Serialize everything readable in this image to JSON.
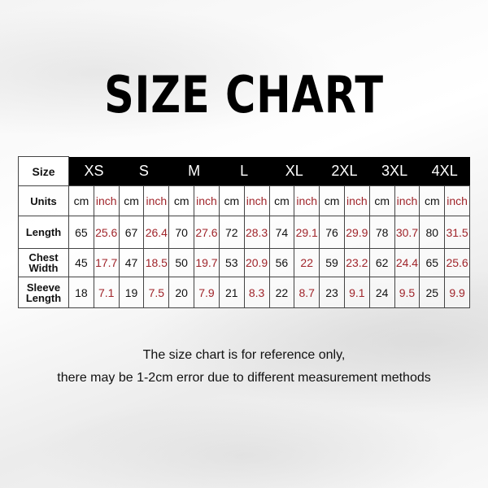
{
  "title": "SIZE CHART",
  "table": {
    "size_label": "Size",
    "sizes": [
      "XS",
      "S",
      "M",
      "L",
      "XL",
      "2XL",
      "3XL",
      "4XL"
    ],
    "units_label": "Units",
    "unit_cm": "cm",
    "unit_inch": "inch",
    "rows": [
      {
        "label": "Length",
        "cm": [
          "65",
          "67",
          "70",
          "72",
          "74",
          "76",
          "78",
          "80"
        ],
        "inch": [
          "25.6",
          "26.4",
          "27.6",
          "28.3",
          "29.1",
          "29.9",
          "30.7",
          "31.5"
        ]
      },
      {
        "label": "Chest Width",
        "cm": [
          "45",
          "47",
          "50",
          "53",
          "56",
          "59",
          "62",
          "65"
        ],
        "inch": [
          "17.7",
          "18.5",
          "19.7",
          "20.9",
          "22",
          "23.2",
          "24.4",
          "25.6"
        ]
      },
      {
        "label": "Sleeve Length",
        "cm": [
          "18",
          "19",
          "20",
          "21",
          "22",
          "23",
          "24",
          "25"
        ],
        "inch": [
          "7.1",
          "7.5",
          "7.9",
          "8.3",
          "8.7",
          "9.1",
          "9.5",
          "9.9"
        ]
      }
    ]
  },
  "note_line1": "The size chart is for reference only,",
  "note_line2": "there may be 1-2cm error due to different measurement methods",
  "colors": {
    "header_bg": "#000000",
    "inch_text": "#a0242a"
  }
}
